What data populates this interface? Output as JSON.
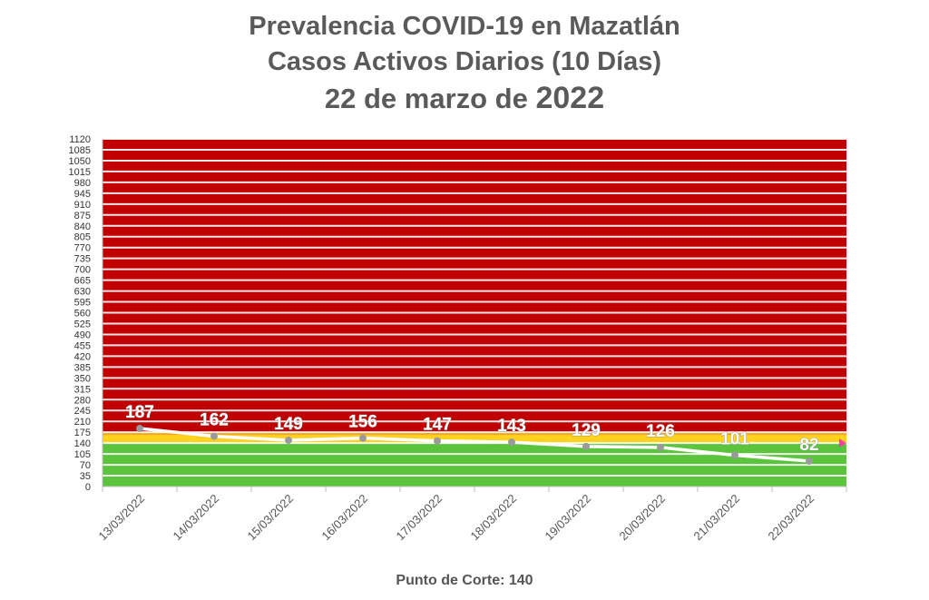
{
  "title_line1": "Prevalencia COVID-19 en Mazatlán",
  "title_line2": "Casos Activos Diarios (10 Días)",
  "title_line3_prefix": "22 de marzo de ",
  "title_line3_year": "2022",
  "footer": "Punto de Corte: 140",
  "colors": {
    "red_zone": "#c00000",
    "orange_zone": "#f5a623",
    "yellow_band": "#ffd21e",
    "green_zone": "#5cc43c",
    "line": "#ffffff",
    "marker": "#9a9a9a",
    "cutoff_marker": "#ff3fa0",
    "text": "#5a5a5a"
  },
  "chart_data": {
    "type": "line",
    "title": "Prevalencia COVID-19 en Mazatlán — Casos Activos Diarios (10 Días)",
    "categories": [
      "13/03/2022",
      "14/03/2022",
      "15/03/2022",
      "16/03/2022",
      "17/03/2022",
      "18/03/2022",
      "19/03/2022",
      "20/03/2022",
      "21/03/2022",
      "22/03/2022"
    ],
    "series": [
      {
        "values": [
          187,
          162,
          149,
          156,
          147,
          143,
          129,
          126,
          101,
          82
        ]
      }
    ],
    "ylim": [
      0,
      1120
    ],
    "y_ticks": [
      0,
      35,
      70,
      105,
      140,
      175,
      210,
      245,
      280,
      315,
      350,
      385,
      420,
      455,
      490,
      525,
      560,
      595,
      630,
      665,
      700,
      735,
      770,
      805,
      840,
      875,
      910,
      945,
      980,
      1015,
      1050,
      1085,
      1120
    ],
    "cutoff": 140,
    "zones": [
      {
        "name": "green",
        "from": 0,
        "to": 140
      },
      {
        "name": "yellow",
        "from": 140,
        "to": 175
      },
      {
        "name": "red",
        "from": 175,
        "to": 1120
      }
    ],
    "data_labels": true,
    "grid": true,
    "legend": "none"
  }
}
